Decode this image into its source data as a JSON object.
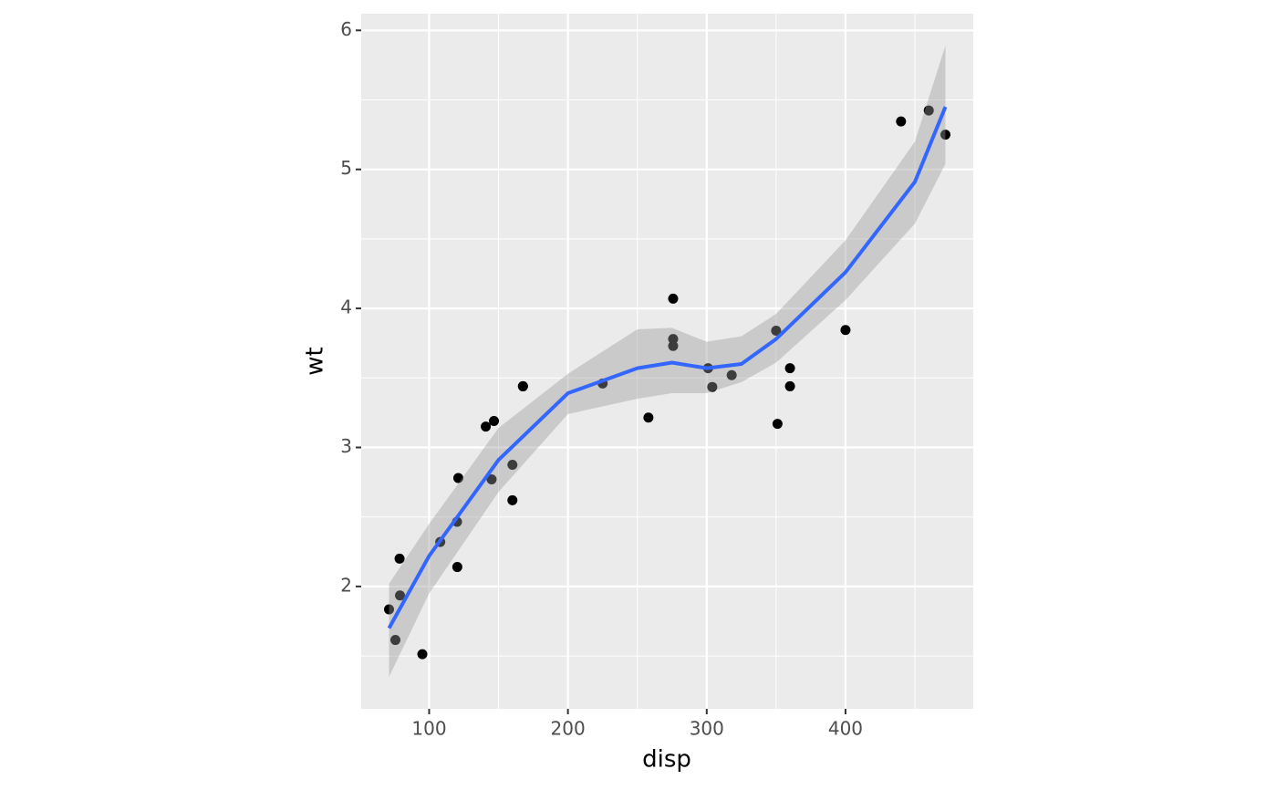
{
  "chart_data": {
    "type": "scatter",
    "xlabel": "disp",
    "ylabel": "wt",
    "xlim": [
      51.05,
      492.05
    ],
    "ylim": [
      1.12,
      6.12
    ],
    "xticks": [
      100,
      200,
      300,
      400
    ],
    "yticks": [
      2,
      3,
      4,
      5,
      6
    ],
    "x_minor_grid": [
      150,
      250,
      350,
      450
    ],
    "y_minor_grid": [
      1.5,
      2.5,
      3.5,
      4.5,
      5.5
    ],
    "grid": true,
    "point_color": "#000000",
    "x": [
      160,
      160,
      108,
      258,
      360,
      225,
      360,
      146.7,
      140.8,
      167.6,
      167.6,
      275.8,
      275.8,
      275.8,
      472,
      460,
      440,
      78.7,
      75.7,
      71.1,
      120.1,
      318,
      304,
      350,
      400,
      79,
      120.3,
      95.1,
      351,
      145,
      301,
      121
    ],
    "y": [
      2.62,
      2.875,
      2.32,
      3.215,
      3.44,
      3.46,
      3.57,
      3.19,
      3.15,
      3.44,
      3.44,
      4.07,
      3.73,
      3.78,
      5.25,
      5.424,
      5.345,
      2.2,
      1.615,
      1.835,
      2.465,
      3.52,
      3.435,
      3.84,
      3.845,
      1.935,
      2.14,
      1.513,
      3.17,
      2.77,
      3.57,
      2.78
    ],
    "smooth": {
      "color": "#3366ff",
      "band_color": "#999999",
      "x": [
        71.1,
        100,
        150,
        200,
        250,
        275,
        300,
        325,
        350,
        400,
        450,
        472
      ],
      "y": [
        1.7,
        2.22,
        2.91,
        3.39,
        3.57,
        3.61,
        3.57,
        3.6,
        3.78,
        4.26,
        4.91,
        5.45
      ],
      "lower": [
        1.35,
        1.95,
        2.68,
        3.24,
        3.35,
        3.39,
        3.39,
        3.47,
        3.61,
        4.06,
        4.61,
        5.04
      ],
      "upper": [
        2.02,
        2.45,
        3.14,
        3.53,
        3.85,
        3.86,
        3.76,
        3.8,
        3.96,
        4.49,
        5.2,
        5.89
      ]
    }
  }
}
